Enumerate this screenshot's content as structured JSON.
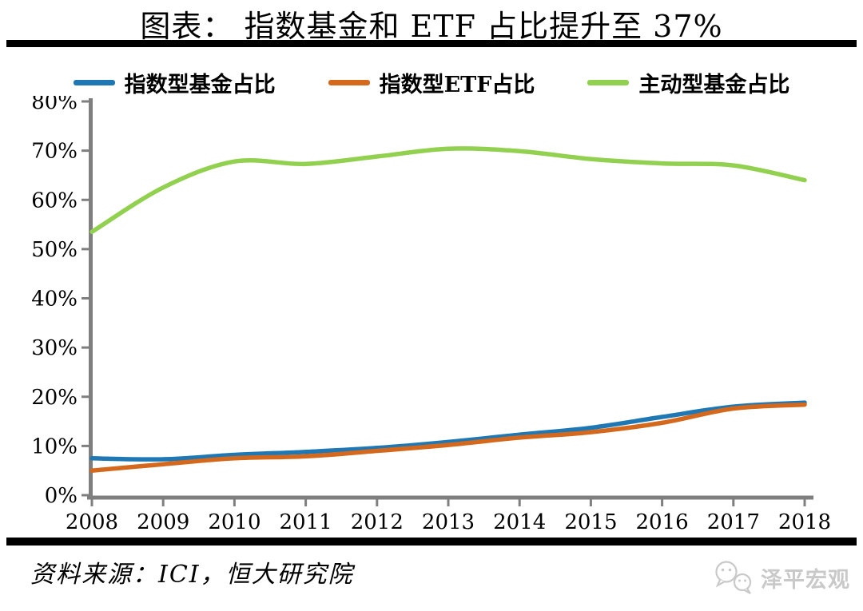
{
  "page": {
    "title": "图表： 指数基金和 ETF 占比提升至 37%",
    "source": "资料来源：ICI，恒大研究院",
    "watermark": "泽平宏观"
  },
  "colors": {
    "axis": "#7f7f7f",
    "text": "#000000",
    "divider": "#000000",
    "watermark": "#c9c9c9"
  },
  "chart_data": {
    "type": "line",
    "x": [
      2008,
      2009,
      2010,
      2011,
      2012,
      2013,
      2014,
      2015,
      2016,
      2017,
      2018
    ],
    "series": [
      {
        "name": "指数型基金占比",
        "color": "#1f78b4",
        "values": [
          7.5,
          7.3,
          8.2,
          8.8,
          9.6,
          10.8,
          12.3,
          13.7,
          15.9,
          18.0,
          18.8
        ]
      },
      {
        "name": "指数型ETF占比",
        "color": "#d4691e",
        "values": [
          5.0,
          6.3,
          7.5,
          7.9,
          9.0,
          10.2,
          11.7,
          12.8,
          14.7,
          17.6,
          18.4
        ]
      },
      {
        "name": "主动型基金占比",
        "color": "#92d050",
        "values": [
          53.5,
          62.5,
          67.8,
          67.3,
          68.8,
          70.4,
          69.9,
          68.3,
          67.4,
          67.0,
          64.0
        ]
      }
    ],
    "title": "图表： 指数基金和 ETF 占比提升至 37%",
    "xlabel": "",
    "ylabel": "",
    "ylim": [
      0,
      80
    ],
    "y_tick_step": 10,
    "y_tick_labels": [
      "0%",
      "10%",
      "20%",
      "30%",
      "40%",
      "50%",
      "60%",
      "70%",
      "80%"
    ],
    "x_tick_labels": [
      "2008",
      "2009",
      "2010",
      "2011",
      "2012",
      "2013",
      "2014",
      "2015",
      "2016",
      "2017",
      "2018"
    ],
    "legend_position": "top",
    "grid": false,
    "line_smoothing": true
  }
}
